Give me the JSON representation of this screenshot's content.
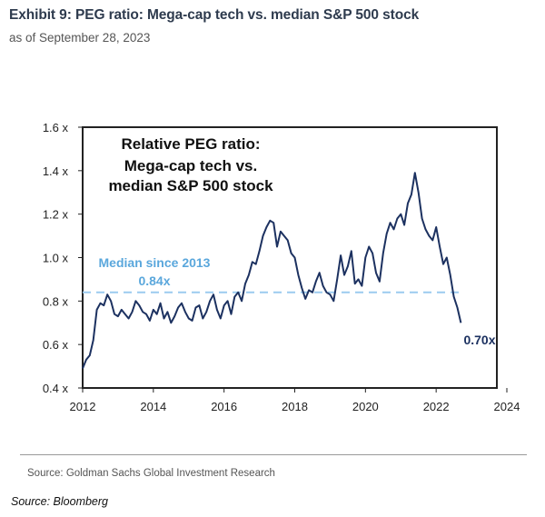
{
  "header": {
    "title": "Exhibit 9: PEG ratio: Mega-cap tech vs. median S&P 500 stock",
    "subtitle": "as of September 28, 2023"
  },
  "footer": {
    "source_primary": "Source: Goldman Sachs Global Investment Research",
    "source_secondary": "Source: Bloomberg"
  },
  "colors": {
    "series": "#1c3160",
    "median": "#9ccbef",
    "median_label": "#5aa7dc"
  },
  "chart_data": {
    "type": "line",
    "title": "Relative PEG ratio: Mega-cap tech vs. median S&P 500 stock",
    "title_lines": [
      "Relative PEG ratio:",
      "Mega-cap tech vs.",
      "median S&P 500 stock"
    ],
    "xlim": [
      2012,
      2024
    ],
    "ylim": [
      0.4,
      1.6
    ],
    "x_ticks": [
      2012,
      2014,
      2016,
      2018,
      2020,
      2022,
      2024
    ],
    "x_tick_labels": [
      "2012",
      "2014",
      "2016",
      "2018",
      "2020",
      "2022",
      "2024"
    ],
    "y_ticks": [
      0.4,
      0.6,
      0.8,
      1.0,
      1.2,
      1.4,
      1.6
    ],
    "y_tick_labels": [
      "0.4 x",
      "0.6 x",
      "0.8 x",
      "1.0 x",
      "1.2 x",
      "1.4 x",
      "1.6 x"
    ],
    "grid": false,
    "series": [
      {
        "x": [
          2012.0,
          2012.1,
          2012.2,
          2012.3,
          2012.4,
          2012.5,
          2012.6,
          2012.7,
          2012.8,
          2012.9,
          2013.0,
          2013.1,
          2013.2,
          2013.3,
          2013.4,
          2013.5,
          2013.6,
          2013.7,
          2013.8,
          2013.9,
          2014.0,
          2014.1,
          2014.2,
          2014.3,
          2014.4,
          2014.5,
          2014.6,
          2014.7,
          2014.8,
          2014.9,
          2015.0,
          2015.1,
          2015.2,
          2015.3,
          2015.4,
          2015.5,
          2015.6,
          2015.7,
          2015.8,
          2015.9,
          2016.0,
          2016.1,
          2016.2,
          2016.3,
          2016.4,
          2016.5,
          2016.6,
          2016.7,
          2016.8,
          2016.9,
          2017.0,
          2017.1,
          2017.2,
          2017.3,
          2017.4,
          2017.5,
          2017.6,
          2017.7,
          2017.8,
          2017.9,
          2018.0,
          2018.1,
          2018.2,
          2018.3,
          2018.4,
          2018.5,
          2018.6,
          2018.7,
          2018.8,
          2018.9,
          2019.0,
          2019.1,
          2019.2,
          2019.3,
          2019.4,
          2019.5,
          2019.6,
          2019.7,
          2019.8,
          2019.9,
          2020.0,
          2020.1,
          2020.2,
          2020.3,
          2020.4,
          2020.5,
          2020.6,
          2020.7,
          2020.8,
          2020.9,
          2021.0,
          2021.1,
          2021.2,
          2021.3,
          2021.4,
          2021.5,
          2021.6,
          2021.7,
          2021.8,
          2021.9,
          2022.0,
          2022.1,
          2022.2,
          2022.3,
          2022.4,
          2022.5,
          2022.6,
          2022.7
        ],
        "values": [
          0.49,
          0.53,
          0.55,
          0.62,
          0.76,
          0.79,
          0.78,
          0.83,
          0.8,
          0.74,
          0.73,
          0.76,
          0.74,
          0.72,
          0.75,
          0.8,
          0.78,
          0.75,
          0.74,
          0.71,
          0.76,
          0.74,
          0.79,
          0.72,
          0.75,
          0.7,
          0.73,
          0.77,
          0.79,
          0.75,
          0.72,
          0.71,
          0.77,
          0.78,
          0.72,
          0.75,
          0.8,
          0.83,
          0.76,
          0.72,
          0.78,
          0.8,
          0.74,
          0.82,
          0.84,
          0.8,
          0.88,
          0.92,
          0.98,
          0.97,
          1.03,
          1.1,
          1.14,
          1.17,
          1.16,
          1.05,
          1.12,
          1.1,
          1.08,
          1.02,
          1.0,
          0.92,
          0.86,
          0.81,
          0.85,
          0.84,
          0.89,
          0.93,
          0.87,
          0.84,
          0.83,
          0.8,
          0.9,
          1.01,
          0.92,
          0.96,
          1.03,
          0.88,
          0.9,
          0.87,
          1.0,
          1.05,
          1.02,
          0.93,
          0.89,
          1.02,
          1.11,
          1.16,
          1.13,
          1.18,
          1.2,
          1.15,
          1.25,
          1.29,
          1.39,
          1.3,
          1.18,
          1.13,
          1.1,
          1.08,
          1.14,
          1.05,
          0.97,
          1.0,
          0.92,
          0.82,
          0.77,
          0.7
        ]
      }
    ],
    "median_line": {
      "value": 0.84,
      "label": "Median since 2013",
      "value_label": "0.84x"
    },
    "end_label": "0.70x"
  }
}
